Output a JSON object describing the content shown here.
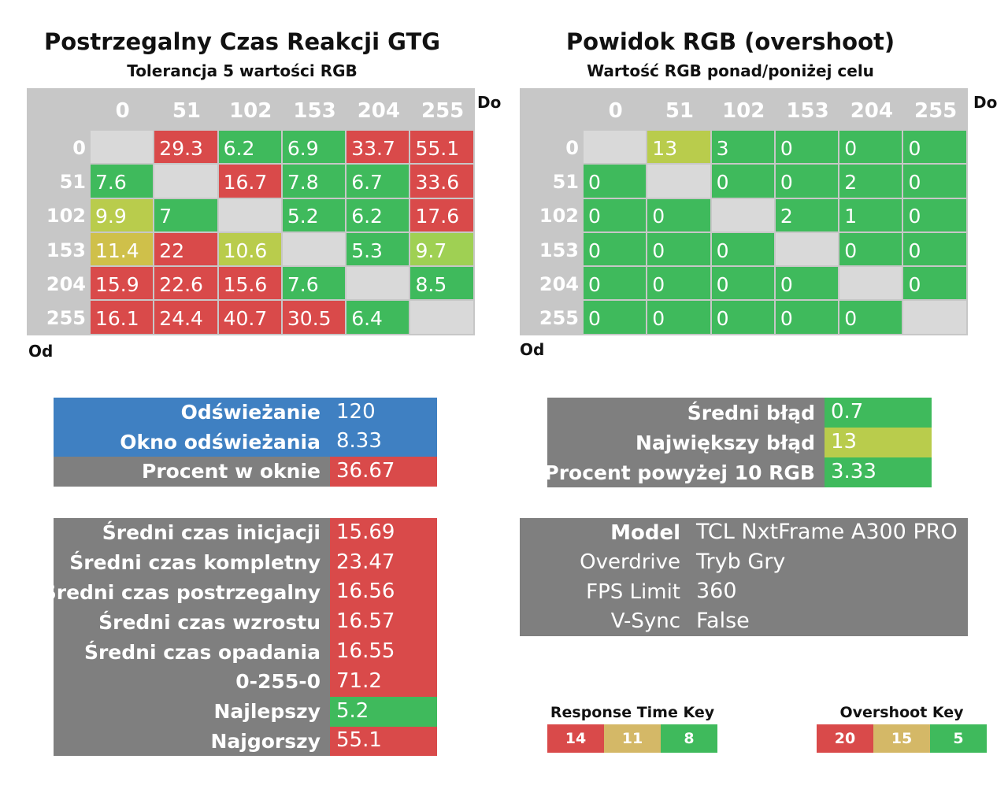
{
  "colors": {
    "red": "#d94a4a",
    "green": "#3fba5c",
    "yellow_green": "#b9cc4c",
    "yellow": "#cfc04a",
    "light_green": "#9fd053",
    "gray": "#7f7f7f",
    "blue": "#3f80c2",
    "header_gray": "#c7c7c7",
    "diagonal": "#d9d9d9",
    "key_red": "#d94a4a",
    "key_tan": "#d4b867",
    "key_green": "#3fba5c"
  },
  "left": {
    "title": "Postrzegalny Czas Reakcji GTG",
    "subtitle": "Tolerancja 5 wartości RGB",
    "to_label": "Do",
    "from_label": "Od"
  },
  "right": {
    "title": "Powidok RGB (overshoot)",
    "subtitle": "Wartość RGB ponad/poniżej celu",
    "to_label": "Do",
    "from_label": "Od"
  },
  "chart_data": [
    {
      "type": "heatmap",
      "title": "Postrzegalny Czas Reakcji GTG",
      "subtitle": "Tolerancja 5 wartości RGB",
      "xlabel": "Do",
      "ylabel": "Od",
      "x": [
        "0",
        "51",
        "102",
        "153",
        "204",
        "255"
      ],
      "y": [
        "0",
        "51",
        "102",
        "153",
        "204",
        "255"
      ],
      "values": [
        [
          null,
          "29.3",
          "6.2",
          "6.9",
          "33.7",
          "55.1"
        ],
        [
          "7.6",
          null,
          "16.7",
          "7.8",
          "6.7",
          "33.6"
        ],
        [
          "9.9",
          "7",
          null,
          "5.2",
          "6.2",
          "17.6"
        ],
        [
          "11.4",
          "22",
          "10.6",
          null,
          "5.3",
          "9.7"
        ],
        [
          "15.9",
          "22.6",
          "15.6",
          "7.6",
          null,
          "8.5"
        ],
        [
          "16.1",
          "24.4",
          "40.7",
          "30.5",
          "6.4",
          null
        ]
      ],
      "cell_colors": [
        [
          null,
          "red",
          "green",
          "green",
          "red",
          "red"
        ],
        [
          "green",
          null,
          "red",
          "green",
          "green",
          "red"
        ],
        [
          "yellow_green",
          "green",
          null,
          "green",
          "green",
          "red"
        ],
        [
          "yellow",
          "red",
          "yellow_green",
          null,
          "green",
          "light_green"
        ],
        [
          "red",
          "red",
          "red",
          "green",
          null,
          "green"
        ],
        [
          "red",
          "red",
          "red",
          "red",
          "green",
          null
        ]
      ]
    },
    {
      "type": "heatmap",
      "title": "Powidok RGB (overshoot)",
      "subtitle": "Wartość RGB ponad/poniżej celu",
      "xlabel": "Do",
      "ylabel": "Od",
      "x": [
        "0",
        "51",
        "102",
        "153",
        "204",
        "255"
      ],
      "y": [
        "0",
        "51",
        "102",
        "153",
        "204",
        "255"
      ],
      "values": [
        [
          null,
          "13",
          "3",
          "0",
          "0",
          "0"
        ],
        [
          "0",
          null,
          "0",
          "0",
          "2",
          "0"
        ],
        [
          "0",
          "0",
          null,
          "2",
          "1",
          "0"
        ],
        [
          "0",
          "0",
          "0",
          null,
          "0",
          "0"
        ],
        [
          "0",
          "0",
          "0",
          "0",
          null,
          "0"
        ],
        [
          "0",
          "0",
          "0",
          "0",
          "0",
          null
        ]
      ],
      "cell_colors": [
        [
          null,
          "yellow_green",
          "green",
          "green",
          "green",
          "green"
        ],
        [
          "green",
          null,
          "green",
          "green",
          "green",
          "green"
        ],
        [
          "green",
          "green",
          null,
          "green",
          "green",
          "green"
        ],
        [
          "green",
          "green",
          "green",
          null,
          "green",
          "green"
        ],
        [
          "green",
          "green",
          "green",
          "green",
          null,
          "green"
        ],
        [
          "green",
          "green",
          "green",
          "green",
          "green",
          null
        ]
      ]
    }
  ],
  "refresh_box": {
    "rows": [
      {
        "label": "Odświeżanie",
        "value": "120",
        "label_color": "blue",
        "value_color": "blue"
      },
      {
        "label": "Okno odświeżania",
        "value": "8.33",
        "label_color": "blue",
        "value_color": "blue"
      },
      {
        "label": "Procent w oknie",
        "value": "36.67",
        "label_color": "gray",
        "value_color": "red"
      }
    ]
  },
  "error_box": {
    "rows": [
      {
        "label": "Średni błąd",
        "value": "0.7",
        "label_color": "gray",
        "value_color": "green"
      },
      {
        "label": "Największy błąd",
        "value": "13",
        "label_color": "gray",
        "value_color": "yellow_green"
      },
      {
        "label": "Procent powyżej 10 RGB",
        "value": "3.33",
        "label_color": "gray",
        "value_color": "green"
      }
    ]
  },
  "times_box": {
    "rows": [
      {
        "label": "Średni czas inicjacji",
        "value": "15.69",
        "value_color": "red"
      },
      {
        "label": "Średni czas kompletny",
        "value": "23.47",
        "value_color": "red"
      },
      {
        "label": "Średni czas postrzegalny",
        "value": "16.56",
        "value_color": "red"
      },
      {
        "label": "Średni czas wzrostu",
        "value": "16.57",
        "value_color": "red"
      },
      {
        "label": "Średni czas opadania",
        "value": "16.55",
        "value_color": "red"
      },
      {
        "label": "0-255-0",
        "value": "71.2",
        "value_color": "red"
      },
      {
        "label": "Najlepszy",
        "value": "5.2",
        "value_color": "green"
      },
      {
        "label": "Najgorszy",
        "value": "55.1",
        "value_color": "red"
      }
    ]
  },
  "model_box": {
    "rows": [
      {
        "label": "Model",
        "value": "TCL NxtFrame A300 PRO",
        "bold": true
      },
      {
        "label": "Overdrive",
        "value": "Tryb Gry",
        "bold": false
      },
      {
        "label": "FPS Limit",
        "value": "360",
        "bold": false
      },
      {
        "label": "V-Sync",
        "value": "False",
        "bold": false
      }
    ]
  },
  "response_key": {
    "title": "Response Time Key",
    "items": [
      {
        "value": "14",
        "color": "key_red"
      },
      {
        "value": "11",
        "color": "key_tan"
      },
      {
        "value": "8",
        "color": "key_green"
      }
    ]
  },
  "overshoot_key": {
    "title": "Overshoot Key",
    "items": [
      {
        "value": "20",
        "color": "key_red"
      },
      {
        "value": "15",
        "color": "key_tan"
      },
      {
        "value": "5",
        "color": "key_green"
      }
    ]
  }
}
